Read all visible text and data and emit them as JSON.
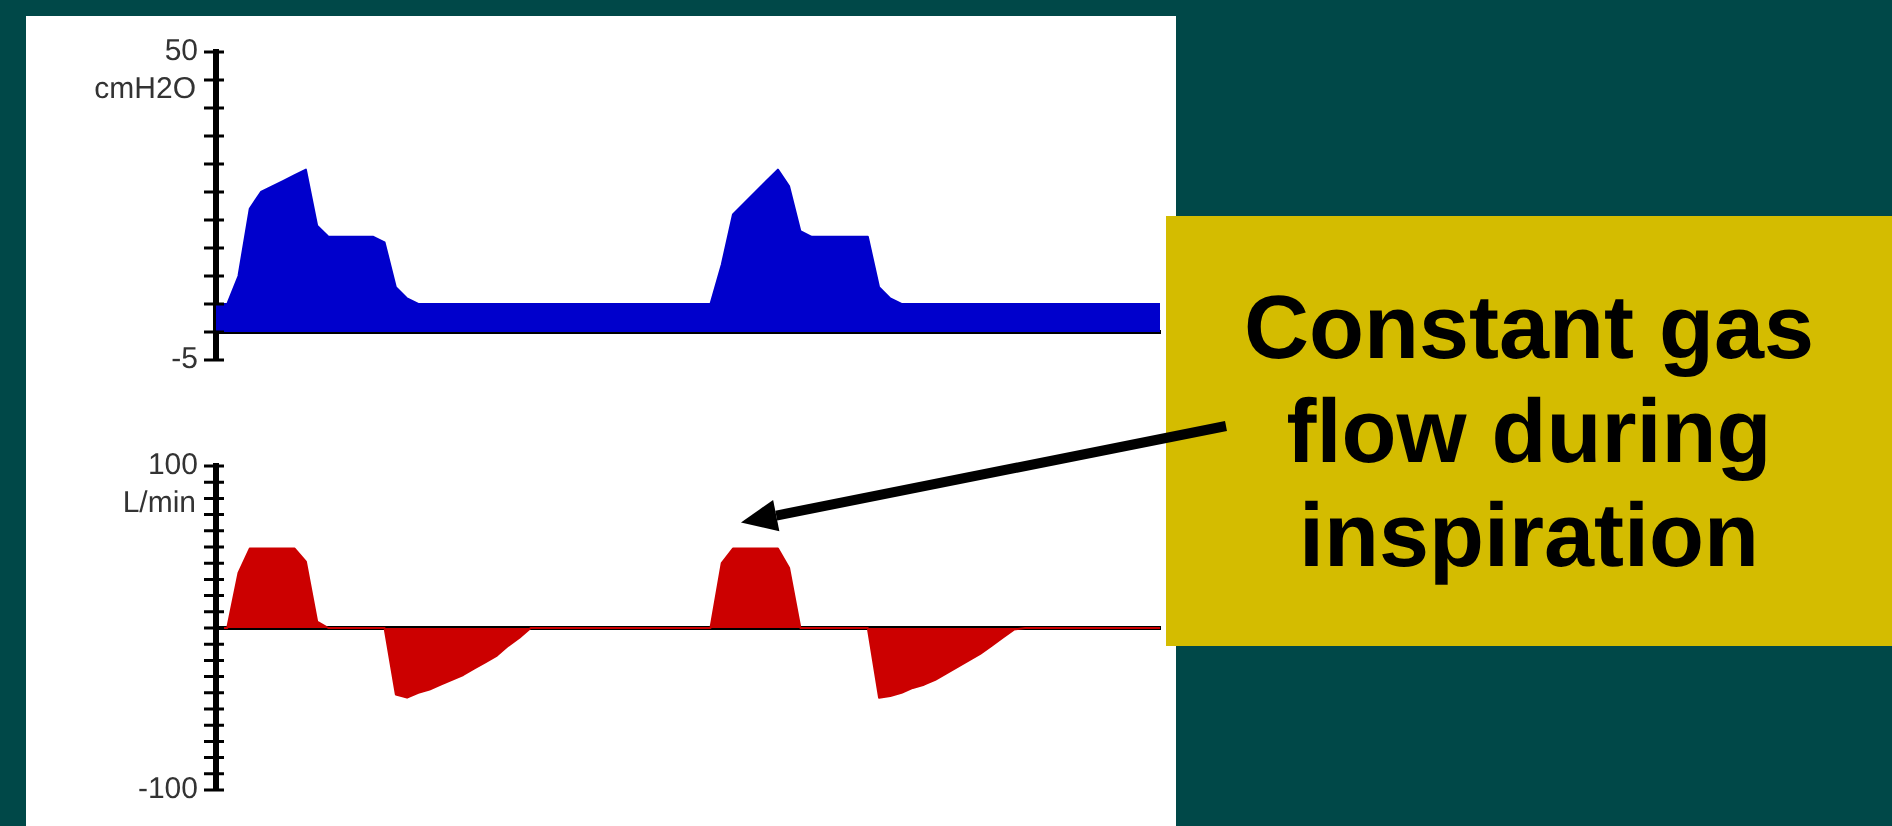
{
  "chart_data": [
    {
      "type": "area",
      "ylabel": "cmH2O",
      "categories": [
        null,
        null,
        null,
        null,
        null,
        null,
        null,
        null,
        null,
        null,
        null,
        null,
        null,
        null,
        null,
        null,
        null,
        null,
        null,
        null,
        null,
        null,
        null,
        null,
        null,
        null,
        null,
        null,
        null,
        null,
        null,
        null,
        null,
        null,
        null,
        null,
        null,
        null,
        null,
        null,
        null,
        null,
        null,
        null,
        null,
        null,
        null,
        null,
        null,
        null,
        null,
        null,
        null,
        null,
        null,
        null,
        null,
        null,
        null,
        null,
        null,
        null,
        null,
        null,
        null,
        null,
        null,
        null,
        null,
        null,
        null,
        null,
        null,
        null,
        null,
        null,
        null,
        null,
        null,
        null,
        null,
        null,
        null,
        null,
        null
      ],
      "series": [
        {
          "color": "#0000cc",
          "values": [
            5,
            5,
            10,
            22,
            25,
            26,
            27,
            28,
            29,
            19,
            17,
            17,
            17,
            17,
            17,
            16,
            8,
            6,
            5,
            5,
            5,
            5,
            5,
            5,
            5,
            5,
            5,
            5,
            5,
            5,
            5,
            5,
            5,
            5,
            5,
            5,
            5,
            5,
            5,
            5,
            5,
            5,
            5,
            5,
            5,
            12,
            21,
            23,
            25,
            27,
            29,
            26,
            18,
            17,
            17,
            17,
            17,
            17,
            17,
            8,
            6,
            5,
            5,
            5,
            5,
            5,
            5,
            5,
            5,
            5,
            5,
            5,
            5,
            5,
            5,
            5,
            5,
            5,
            5,
            5,
            5,
            5,
            5,
            5,
            5
          ]
        }
      ],
      "ylim": [
        -5,
        50
      ],
      "yticks": [
        -5,
        {
          "value": 0,
          "label": null
        },
        {
          "value": 5,
          "label": null
        },
        {
          "value": 10,
          "label": null
        },
        {
          "value": 15,
          "label": null
        },
        {
          "value": 20,
          "label": null
        },
        {
          "value": 25,
          "label": null
        },
        {
          "value": 30,
          "label": null
        },
        {
          "value": 35,
          "label": null
        },
        {
          "value": 40,
          "label": null
        },
        {
          "value": 45,
          "label": null
        },
        50
      ],
      "tick_labels": "y",
      "legend": false,
      "marker": "none"
    },
    {
      "type": "area",
      "ylabel": "L/min",
      "categories": [
        null,
        null,
        null,
        null,
        null,
        null,
        null,
        null,
        null,
        null,
        null,
        null,
        null,
        null,
        null,
        null,
        null,
        null,
        null,
        null,
        null,
        null,
        null,
        null,
        null,
        null,
        null,
        null,
        null,
        null,
        null,
        null,
        null,
        null,
        null,
        null,
        null,
        null,
        null,
        null,
        null,
        null,
        null,
        null,
        null,
        null,
        null,
        null,
        null,
        null,
        null,
        null,
        null,
        null,
        null,
        null,
        null,
        null,
        null,
        null,
        null,
        null,
        null,
        null,
        null,
        null,
        null,
        null,
        null,
        null,
        null,
        null,
        null,
        null,
        null,
        null,
        null,
        null,
        null,
        null,
        null,
        null,
        null,
        null,
        null
      ],
      "series": [
        {
          "color": "#cc0000",
          "values": [
            0,
            0,
            34,
            49,
            49,
            49,
            49,
            49,
            41,
            4,
            0,
            0,
            0,
            0,
            0,
            0,
            -41,
            -43,
            -40,
            -38,
            -35,
            -32,
            -29,
            -25,
            -21,
            -17,
            -11,
            -6,
            0,
            0,
            0,
            0,
            0,
            0,
            0,
            0,
            0,
            0,
            0,
            0,
            0,
            0,
            0,
            0,
            0,
            40,
            49,
            49,
            49,
            49,
            49,
            37,
            0,
            0,
            0,
            0,
            0,
            0,
            0,
            -43,
            -42,
            -40,
            -37,
            -35,
            -32,
            -28,
            -24,
            -20,
            -16,
            -11,
            -6,
            -1,
            0,
            0,
            0,
            0,
            0,
            0,
            0,
            0,
            0,
            0,
            0,
            0,
            0
          ]
        }
      ],
      "ylim": [
        -100,
        100
      ],
      "yticks": [
        -100,
        {
          "value": -90,
          "label": null
        },
        {
          "value": -80,
          "label": null
        },
        {
          "value": -70,
          "label": null
        },
        {
          "value": -60,
          "label": null
        },
        {
          "value": -50,
          "label": null
        },
        {
          "value": -40,
          "label": null
        },
        {
          "value": -30,
          "label": null
        },
        {
          "value": -20,
          "label": null
        },
        {
          "value": -10,
          "label": null
        },
        {
          "value": 0,
          "label": null
        },
        {
          "value": 10,
          "label": null
        },
        {
          "value": 20,
          "label": null
        },
        {
          "value": 30,
          "label": null
        },
        {
          "value": 40,
          "label": null
        },
        {
          "value": 50,
          "label": null
        },
        {
          "value": 60,
          "label": null
        },
        {
          "value": 70,
          "label": null
        },
        {
          "value": 80,
          "label": null
        },
        {
          "value": 90,
          "label": null
        },
        100
      ],
      "tick_labels": "y",
      "legend": false,
      "marker": "none",
      "annotations": [
        "Constant gas flow during inspiration"
      ]
    }
  ]
}
